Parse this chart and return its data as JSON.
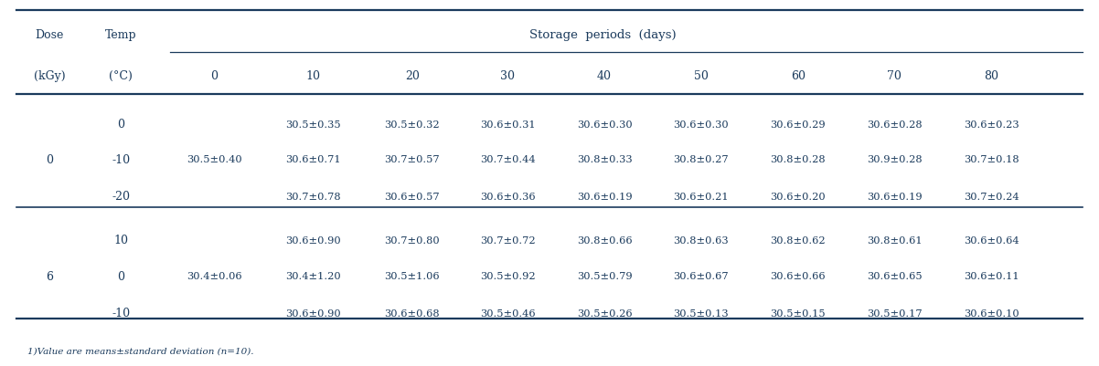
{
  "col_header_days": [
    "0",
    "10",
    "20",
    "30",
    "40",
    "50",
    "60",
    "70",
    "80"
  ],
  "rows": [
    [
      "",
      "0",
      "",
      "30.5±0.35",
      "30.5±0.32",
      "30.6±0.31",
      "30.6±0.30",
      "30.6±0.30",
      "30.6±0.29",
      "30.6±0.28",
      "30.6±0.23"
    ],
    [
      "0",
      "-10",
      "30.5±0.40",
      "30.6±0.71",
      "30.7±0.57",
      "30.7±0.44",
      "30.8±0.33",
      "30.8±0.27",
      "30.8±0.28",
      "30.9±0.28",
      "30.7±0.18"
    ],
    [
      "",
      "-20",
      "",
      "30.7±0.78",
      "30.6±0.57",
      "30.6±0.36",
      "30.6±0.19",
      "30.6±0.21",
      "30.6±0.20",
      "30.6±0.19",
      "30.7±0.24"
    ],
    [
      "",
      "10",
      "",
      "30.6±0.90",
      "30.7±0.80",
      "30.7±0.72",
      "30.8±0.66",
      "30.8±0.63",
      "30.8±0.62",
      "30.8±0.61",
      "30.6±0.64"
    ],
    [
      "6",
      "0",
      "30.4±0.06",
      "30.4±1.20",
      "30.5±1.06",
      "30.5±0.92",
      "30.5±0.79",
      "30.6±0.67",
      "30.6±0.66",
      "30.6±0.65",
      "30.6±0.11"
    ],
    [
      "",
      "-10",
      "",
      "30.6±0.90",
      "30.6±0.68",
      "30.5±0.46",
      "30.5±0.26",
      "30.5±0.13",
      "30.5±0.15",
      "30.5±0.17",
      "30.6±0.10"
    ]
  ],
  "footnote": "1)Value are means±standard deviation (n=10).",
  "text_color": "#1a3a5c",
  "bg_color": "#ffffff",
  "fs_header": 9.0,
  "fs_data": 8.2,
  "fs_footnote": 7.5
}
